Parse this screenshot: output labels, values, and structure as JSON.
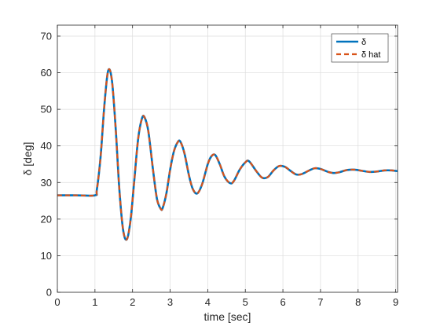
{
  "chart_data": {
    "type": "line",
    "xlabel": "time [sec]",
    "ylabel": "δ [deg]",
    "xlim": [
      0,
      9.05
    ],
    "ylim": [
      0,
      73
    ],
    "xticks": [
      0,
      1,
      2,
      3,
      4,
      5,
      6,
      7,
      8,
      9
    ],
    "yticks": [
      0,
      10,
      20,
      30,
      40,
      50,
      60,
      70
    ],
    "grid": true,
    "legend_position": "top-right",
    "series": [
      {
        "name": "δ",
        "color": "#0072BD",
        "style": "solid",
        "x": [
          0,
          0.5,
          1.0,
          1.05,
          1.15,
          1.25,
          1.35,
          1.45,
          1.55,
          1.65,
          1.75,
          1.85,
          1.95,
          2.05,
          2.15,
          2.25,
          2.32,
          2.42,
          2.55,
          2.65,
          2.75,
          2.8,
          2.9,
          3.0,
          3.1,
          3.2,
          3.27,
          3.38,
          3.5,
          3.6,
          3.72,
          3.85,
          4.0,
          4.1,
          4.2,
          4.32,
          4.45,
          4.6,
          4.7,
          4.85,
          5.0,
          5.1,
          5.3,
          5.45,
          5.6,
          5.75,
          5.9,
          6.05,
          6.2,
          6.35,
          6.5,
          6.7,
          6.85,
          7.0,
          7.2,
          7.35,
          7.5,
          7.7,
          7.9,
          8.1,
          8.3,
          8.5,
          8.7,
          8.9,
          9.05
        ],
        "y": [
          26.5,
          26.5,
          26.5,
          28.0,
          37.0,
          51.0,
          60.5,
          58.0,
          45.0,
          28.0,
          17.0,
          14.5,
          20.0,
          31.0,
          42.0,
          47.5,
          47.8,
          44.0,
          33.0,
          25.5,
          22.8,
          23.0,
          27.0,
          33.5,
          38.5,
          41.0,
          41.2,
          38.0,
          32.0,
          28.3,
          27.0,
          29.5,
          35.0,
          37.2,
          37.5,
          35.0,
          31.5,
          29.8,
          30.5,
          33.5,
          35.5,
          35.8,
          33.0,
          31.3,
          31.5,
          33.3,
          34.5,
          34.3,
          33.2,
          32.2,
          32.3,
          33.3,
          33.9,
          33.7,
          32.9,
          32.6,
          32.8,
          33.4,
          33.5,
          33.2,
          32.9,
          33.0,
          33.3,
          33.3,
          33.1
        ]
      },
      {
        "name": "δ hat",
        "color": "#D95319",
        "style": "dashed",
        "x": [
          0,
          0.5,
          1.0,
          1.05,
          1.15,
          1.25,
          1.35,
          1.45,
          1.55,
          1.65,
          1.75,
          1.85,
          1.95,
          2.05,
          2.15,
          2.25,
          2.32,
          2.42,
          2.55,
          2.65,
          2.75,
          2.8,
          2.9,
          3.0,
          3.1,
          3.2,
          3.27,
          3.38,
          3.5,
          3.6,
          3.72,
          3.85,
          4.0,
          4.1,
          4.2,
          4.32,
          4.45,
          4.6,
          4.7,
          4.85,
          5.0,
          5.1,
          5.3,
          5.45,
          5.6,
          5.75,
          5.9,
          6.05,
          6.2,
          6.35,
          6.5,
          6.7,
          6.85,
          7.0,
          7.2,
          7.35,
          7.5,
          7.7,
          7.9,
          8.1,
          8.3,
          8.5,
          8.7,
          8.9,
          9.05
        ],
        "y": [
          26.5,
          26.5,
          26.5,
          28.0,
          37.0,
          51.0,
          60.5,
          58.0,
          45.0,
          28.0,
          17.0,
          14.5,
          20.0,
          31.0,
          42.0,
          47.5,
          47.8,
          44.0,
          33.0,
          25.5,
          22.8,
          23.0,
          27.0,
          33.5,
          38.5,
          41.0,
          41.2,
          38.0,
          32.0,
          28.3,
          27.0,
          29.5,
          35.0,
          37.2,
          37.5,
          35.0,
          31.5,
          29.8,
          30.5,
          33.5,
          35.5,
          35.8,
          33.0,
          31.3,
          31.5,
          33.3,
          34.5,
          34.3,
          33.2,
          32.2,
          32.3,
          33.3,
          33.9,
          33.7,
          32.9,
          32.6,
          32.8,
          33.4,
          33.5,
          33.2,
          32.9,
          33.0,
          33.3,
          33.3,
          33.1
        ]
      }
    ]
  }
}
